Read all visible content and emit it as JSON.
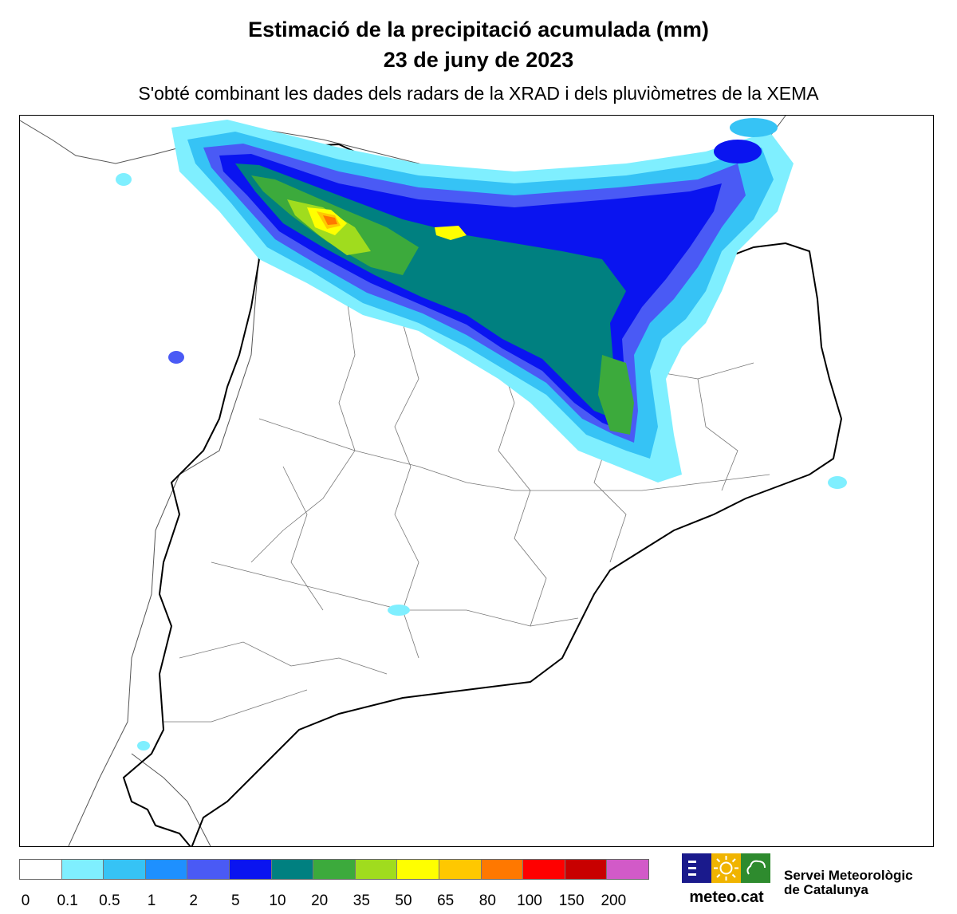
{
  "header": {
    "title": "Estimació de la precipitació acumulada (mm)",
    "date": "23 de juny de 2023",
    "subtitle": "S'obté combinant les dades dels radars de la XRAD i dels pluviòmetres de la XEMA"
  },
  "legend": {
    "thresholds": [
      "0",
      "0.1",
      "0.5",
      "1",
      "2",
      "5",
      "10",
      "20",
      "35",
      "50",
      "65",
      "80",
      "100",
      "150",
      "200"
    ],
    "colors": [
      "#ffffff",
      "#7fefff",
      "#36c3f5",
      "#1e90ff",
      "#4a5af5",
      "#0a14f0",
      "#008080",
      "#3caa3c",
      "#a0dc1e",
      "#ffff00",
      "#ffc800",
      "#ff7800",
      "#ff0000",
      "#c80000",
      "#d25ac8"
    ]
  },
  "logo": {
    "text": "meteo.cat",
    "colors": [
      "#1a1a8c",
      "#f0b400",
      "#2e8b2e"
    ]
  },
  "organization": {
    "line1": "Servei Meteorològic",
    "line2": "de Catalunya"
  }
}
